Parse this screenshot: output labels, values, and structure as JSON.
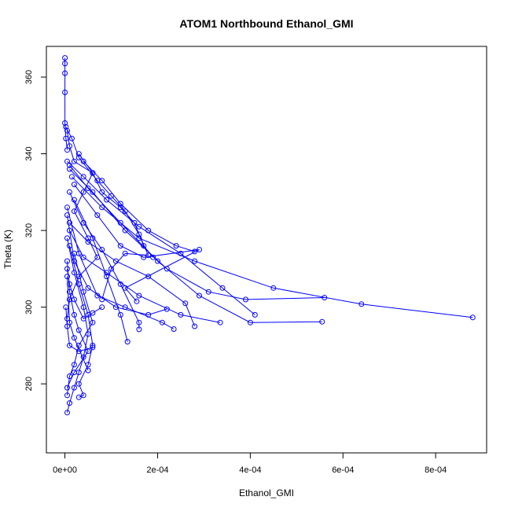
{
  "chart_data": {
    "type": "scatter",
    "title": "ATOM1 Northbound Ethanol_GMI",
    "xlabel": "Ethanol_GMI",
    "ylabel": "Theta (K)",
    "xlim": [
      -4e-05,
      0.00091
    ],
    "ylim": [
      262,
      368
    ],
    "x_ticks": [
      0,
      0.0002,
      0.0004,
      0.0006,
      0.0008
    ],
    "x_tick_labels": [
      "0e+00",
      "2e-04",
      "4e-04",
      "6e-04",
      "8e-04"
    ],
    "y_ticks": [
      280,
      300,
      320,
      340,
      360
    ],
    "y_tick_labels": [
      "280",
      "300",
      "320",
      "340",
      "360"
    ],
    "grid": false,
    "legend": "none",
    "series_color": "#0000ff",
    "marker": "open-circle",
    "connect_points": true,
    "series": [
      {
        "points": [
          [
            0.0,
            365
          ],
          [
            0.0,
            363.5
          ],
          [
            0.0,
            361
          ],
          [
            0.0,
            356
          ],
          [
            0.0,
            348
          ],
          [
            2e-06,
            344
          ],
          [
            5e-06,
            341
          ]
        ]
      },
      {
        "points": [
          [
            5e-06,
            338
          ],
          [
            4e-05,
            334
          ],
          [
            9e-05,
            328
          ],
          [
            0.00016,
            321
          ],
          [
            0.00025,
            314
          ],
          [
            0.00034,
            305
          ],
          [
            0.00041,
            298
          ]
        ]
      },
      {
        "points": [
          [
            1e-05,
            337
          ],
          [
            5e-05,
            331
          ],
          [
            0.00012,
            322
          ],
          [
            0.0002,
            312
          ],
          [
            0.00029,
            303
          ],
          [
            0.0004,
            296
          ],
          [
            0.000555,
            296.2
          ]
        ]
      },
      {
        "points": [
          [
            1e-05,
            336
          ],
          [
            6e-05,
            330
          ],
          [
            0.00013,
            320
          ],
          [
            0.00022,
            310
          ],
          [
            0.00031,
            304
          ],
          [
            0.00039,
            302
          ],
          [
            0.00056,
            302.5
          ]
        ]
      },
      {
        "points": [
          [
            1.5e-05,
            334
          ],
          [
            8e-05,
            326
          ],
          [
            0.00016,
            318
          ],
          [
            0.00028,
            312
          ],
          [
            0.00045,
            305
          ],
          [
            0.00064,
            300.8
          ],
          [
            0.00088,
            297.3
          ]
        ]
      },
      {
        "points": [
          [
            2e-05,
            332
          ],
          [
            7e-05,
            324
          ],
          [
            0.00012,
            316
          ],
          [
            0.00017,
            313
          ],
          [
            0.00029,
            315
          ],
          [
            0.00013,
            305
          ],
          [
            0.000155,
            301.5
          ]
        ]
      },
      {
        "points": [
          [
            1e-05,
            330
          ],
          [
            4e-05,
            322
          ],
          [
            8e-05,
            315
          ],
          [
            0.00012,
            306
          ],
          [
            0.00016,
            296
          ],
          [
            0.00016,
            294.2
          ]
        ]
      },
      {
        "points": [
          [
            2e-05,
            328
          ],
          [
            6e-05,
            318
          ],
          [
            9e-05,
            308
          ],
          [
            0.00012,
            298
          ],
          [
            0.000135,
            291
          ]
        ]
      },
      {
        "points": [
          [
            5e-06,
            326
          ],
          [
            3e-05,
            314
          ],
          [
            7e-05,
            303
          ],
          [
            0.00013,
            300
          ],
          [
            0.00021,
            296
          ],
          [
            0.000235,
            294.3
          ]
        ]
      },
      {
        "points": [
          [
            5e-06,
            324
          ],
          [
            2e-05,
            312
          ],
          [
            5e-05,
            305
          ],
          [
            0.00011,
            300
          ],
          [
            0.00018,
            298
          ],
          [
            0.00022,
            299.5
          ]
        ]
      },
      {
        "points": [
          [
            1e-05,
            322
          ],
          [
            5e-05,
            317
          ],
          [
            0.00011,
            312
          ],
          [
            0.00018,
            308
          ],
          [
            0.00026,
            301
          ],
          [
            0.00028,
            295
          ]
        ]
      },
      {
        "points": [
          [
            1e-05,
            320
          ],
          [
            4e-05,
            313
          ],
          [
            9e-05,
            309
          ],
          [
            0.00016,
            303
          ],
          [
            0.00025,
            298
          ],
          [
            0.000335,
            296
          ]
        ]
      },
      {
        "points": [
          [
            5e-06,
            318
          ],
          [
            2e-05,
            309
          ],
          [
            4e-05,
            300
          ],
          [
            5e-05,
            293
          ],
          [
            4e-05,
            287
          ],
          [
            3e-05,
            283
          ],
          [
            2e-05,
            279
          ],
          [
            1e-05,
            275
          ],
          [
            5e-06,
            272.5
          ]
        ]
      },
      {
        "points": [
          [
            1e-05,
            316
          ],
          [
            3e-05,
            306
          ],
          [
            5e-05,
            298
          ],
          [
            6e-05,
            290
          ],
          [
            5e-05,
            285
          ],
          [
            3e-05,
            280
          ],
          [
            4e-05,
            277
          ],
          [
            3e-05,
            276.5
          ]
        ]
      },
      {
        "points": [
          [
            2e-05,
            314
          ],
          [
            4e-05,
            304
          ],
          [
            6e-05,
            296
          ],
          [
            3e-05,
            290
          ],
          [
            2e-05,
            285
          ],
          [
            1e-05,
            282
          ],
          [
            5e-06,
            277
          ]
        ]
      },
      {
        "points": [
          [
            5e-06,
            312
          ],
          [
            1e-05,
            304
          ],
          [
            2e-05,
            298
          ],
          [
            3e-05,
            294
          ],
          [
            5e-05,
            288.5
          ],
          [
            2e-05,
            283
          ],
          [
            5e-06,
            279
          ]
        ]
      },
      {
        "points": [
          [
            3e-05,
            340
          ],
          [
            6e-05,
            335
          ],
          [
            4e-05,
            330
          ],
          [
            2e-05,
            325
          ],
          [
            5e-05,
            318
          ],
          [
            7e-05,
            313
          ],
          [
            3e-05,
            308
          ],
          [
            1e-05,
            302
          ],
          [
            5e-06,
            297
          ]
        ]
      },
      {
        "points": [
          [
            5e-06,
            346
          ],
          [
            1e-05,
            342
          ],
          [
            2e-05,
            338
          ],
          [
            6e-05,
            335
          ],
          [
            8e-05,
            330
          ],
          [
            0.00012,
            326
          ],
          [
            0.00015,
            322
          ],
          [
            0.00017,
            316
          ],
          [
            0.00019,
            313
          ]
        ]
      },
      {
        "points": [
          [
            2e-06,
            347
          ],
          [
            1.5e-05,
            344
          ],
          [
            3e-05,
            339
          ],
          [
            7e-05,
            333
          ],
          [
            0.0001,
            329
          ],
          [
            0.00013,
            325
          ],
          [
            0.00016,
            319
          ],
          [
            0.00018,
            313.5
          ],
          [
            0.00013,
            314
          ],
          [
            0.0001,
            310
          ],
          [
            8e-05,
            302
          ]
        ]
      },
      {
        "points": [
          [
            5e-06,
            310
          ],
          [
            1e-05,
            306
          ],
          [
            2e-05,
            302
          ],
          [
            4e-05,
            297
          ],
          [
            6e-05,
            298.5
          ],
          [
            8e-05,
            300
          ]
        ]
      },
      {
        "points": [
          [
            2e-06,
            300
          ],
          [
            5e-06,
            295
          ],
          [
            1e-05,
            290
          ],
          [
            3e-05,
            288.5
          ],
          [
            6e-05,
            289.5
          ]
        ]
      },
      {
        "points": [
          [
            4e-05,
            338
          ],
          [
            8e-05,
            333
          ],
          [
            0.00012,
            327
          ],
          [
            0.00018,
            320
          ],
          [
            0.00024,
            316
          ],
          [
            0.00028,
            314.5
          ]
        ]
      },
      {
        "points": [
          [
            5e-06,
            308
          ],
          [
            1e-05,
            296
          ],
          [
            2e-05,
            292
          ],
          [
            5e-05,
            283.5
          ]
        ]
      }
    ]
  }
}
